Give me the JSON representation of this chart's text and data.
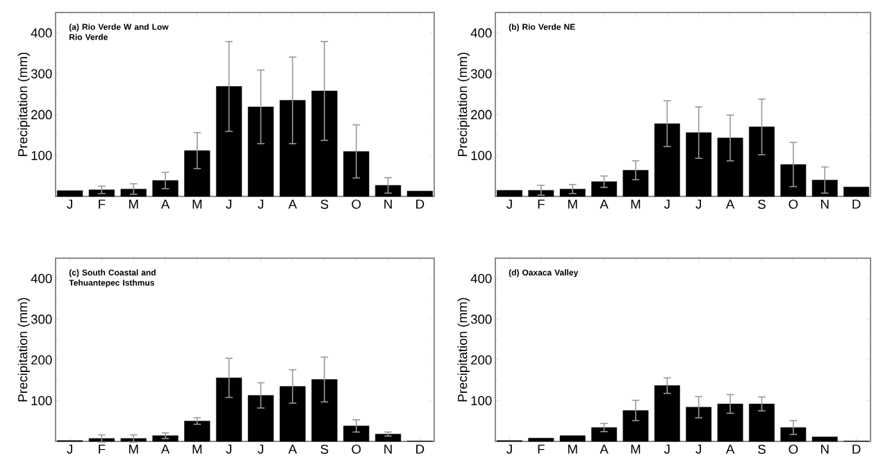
{
  "chart_data": [
    {
      "type": "bar",
      "title": "(a) Rio Verde W and Low Rio Verde",
      "ylabel": "Precipitation (mm)",
      "categories": [
        "J",
        "F",
        "M",
        "A",
        "M",
        "J",
        "J",
        "A",
        "S",
        "O",
        "N",
        "D"
      ],
      "color": "#000000",
      "values": [
        14,
        16,
        18,
        39,
        112,
        269,
        219,
        235,
        258,
        110,
        27,
        13
      ],
      "errors": [
        null,
        9,
        13,
        20,
        44,
        110,
        90,
        106,
        121,
        65,
        19,
        null
      ],
      "ylim": [
        0,
        450
      ],
      "yticks": [
        100,
        200,
        300,
        400
      ]
    },
    {
      "type": "bar",
      "title": "(b) Rio Verde NE",
      "ylabel": "Precipitation (mm)",
      "categories": [
        "J",
        "F",
        "M",
        "A",
        "M",
        "J",
        "J",
        "A",
        "S",
        "O",
        "N",
        "D"
      ],
      "color": "#000000",
      "values": [
        15,
        15,
        18,
        36,
        64,
        178,
        156,
        143,
        170,
        78,
        40,
        23
      ],
      "errors": [
        null,
        12,
        11,
        14,
        23,
        56,
        63,
        56,
        68,
        54,
        32,
        null
      ],
      "ylim": [
        0,
        450
      ],
      "yticks": [
        100,
        200,
        300,
        400
      ]
    },
    {
      "type": "bar",
      "title": "(c) South Coastal and Tehuantepec Isthmus",
      "ylabel": "Precipitation (mm)",
      "categories": [
        "J",
        "F",
        "M",
        "A",
        "M",
        "J",
        "J",
        "A",
        "S",
        "O",
        "N",
        "D"
      ],
      "color": "#000000",
      "values": [
        2,
        7,
        7,
        14,
        50,
        156,
        113,
        135,
        152,
        38,
        18,
        1
      ],
      "errors": [
        null,
        9,
        9,
        7,
        8,
        48,
        31,
        41,
        55,
        15,
        5,
        null
      ],
      "ylim": [
        0,
        450
      ],
      "yticks": [
        100,
        200,
        300,
        400
      ]
    },
    {
      "type": "bar",
      "title": "(d) Oaxaca Valley",
      "ylabel": "Precipitation (mm)",
      "categories": [
        "J",
        "F",
        "M",
        "A",
        "M",
        "J",
        "J",
        "A",
        "S",
        "O",
        "N",
        "D"
      ],
      "color": "#000000",
      "values": [
        2,
        8,
        14,
        34,
        76,
        137,
        84,
        92,
        92,
        34,
        11,
        1
      ],
      "errors": [
        null,
        null,
        null,
        10,
        25,
        19,
        26,
        23,
        17,
        17,
        null,
        null
      ],
      "ylim": [
        0,
        450
      ],
      "yticks": [
        100,
        200,
        300,
        400
      ]
    }
  ]
}
